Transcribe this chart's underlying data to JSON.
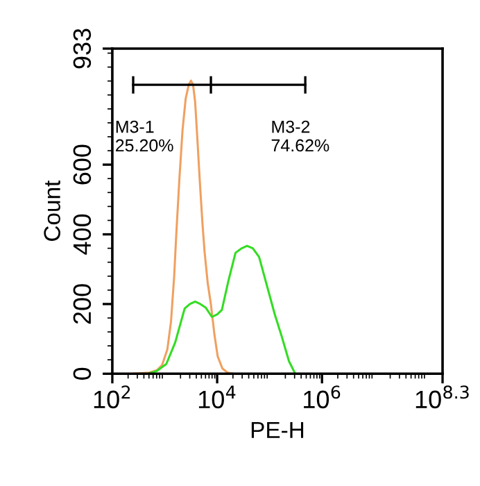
{
  "chart_data": {
    "type": "line",
    "xlabel": "PE-H",
    "ylabel": "Count",
    "log": "x",
    "xlim": [
      100,
      199526231
    ],
    "xticks": [
      {
        "value": 100,
        "label": "10$^{2}$"
      },
      {
        "value": 10000,
        "label": "10$^{4}$"
      },
      {
        "value": 1000000,
        "label": "10$^{6}$"
      },
      {
        "value": 199526231,
        "label": "10$^{8.3}$"
      }
    ],
    "ylim": [
      0,
      933
    ],
    "yticks": [
      0,
      200,
      400,
      600,
      933
    ],
    "grid": false,
    "legend": false,
    "series": [
      {
        "color": "#f0a060",
        "x": [
          251,
          501,
          708,
          891,
          1122,
          1318,
          1514,
          1660,
          1905,
          2188,
          2512,
          2884,
          3162,
          3467,
          3802,
          4169,
          4677,
          5248,
          5754,
          6607,
          7586,
          8913,
          10233,
          12589,
          15849,
          19953
        ],
        "values": [
          0,
          3,
          10,
          25,
          70,
          150,
          280,
          400,
          560,
          700,
          790,
          830,
          841,
          830,
          780,
          680,
          550,
          430,
          350,
          260,
          200,
          110,
          50,
          15,
          3,
          0
        ]
      },
      {
        "color": "#33dd22",
        "x": [
          490,
          708,
          1072,
          1585,
          2399,
          3020,
          3802,
          4786,
          6026,
          7943,
          10000,
          12303,
          16596,
          22387,
          29512,
          37154,
          47863,
          63096,
          91201,
          125893,
          169824,
          234423,
          309030
        ],
        "values": [
          0,
          8,
          28,
          90,
          187,
          200,
          207,
          200,
          190,
          163,
          170,
          183,
          270,
          347,
          360,
          367,
          360,
          335,
          247,
          170,
          108,
          36,
          0
        ]
      },
      {
        "color": "#000000",
        "x": [
          250,
          7600,
          480000
        ],
        "values": [
          829,
          829,
          829
        ],
        "errors": [
          25,
          25,
          25
        ]
      }
    ],
    "annotations": [
      "M3-1\n25.20%",
      "M3-2\n74.62%"
    ]
  }
}
